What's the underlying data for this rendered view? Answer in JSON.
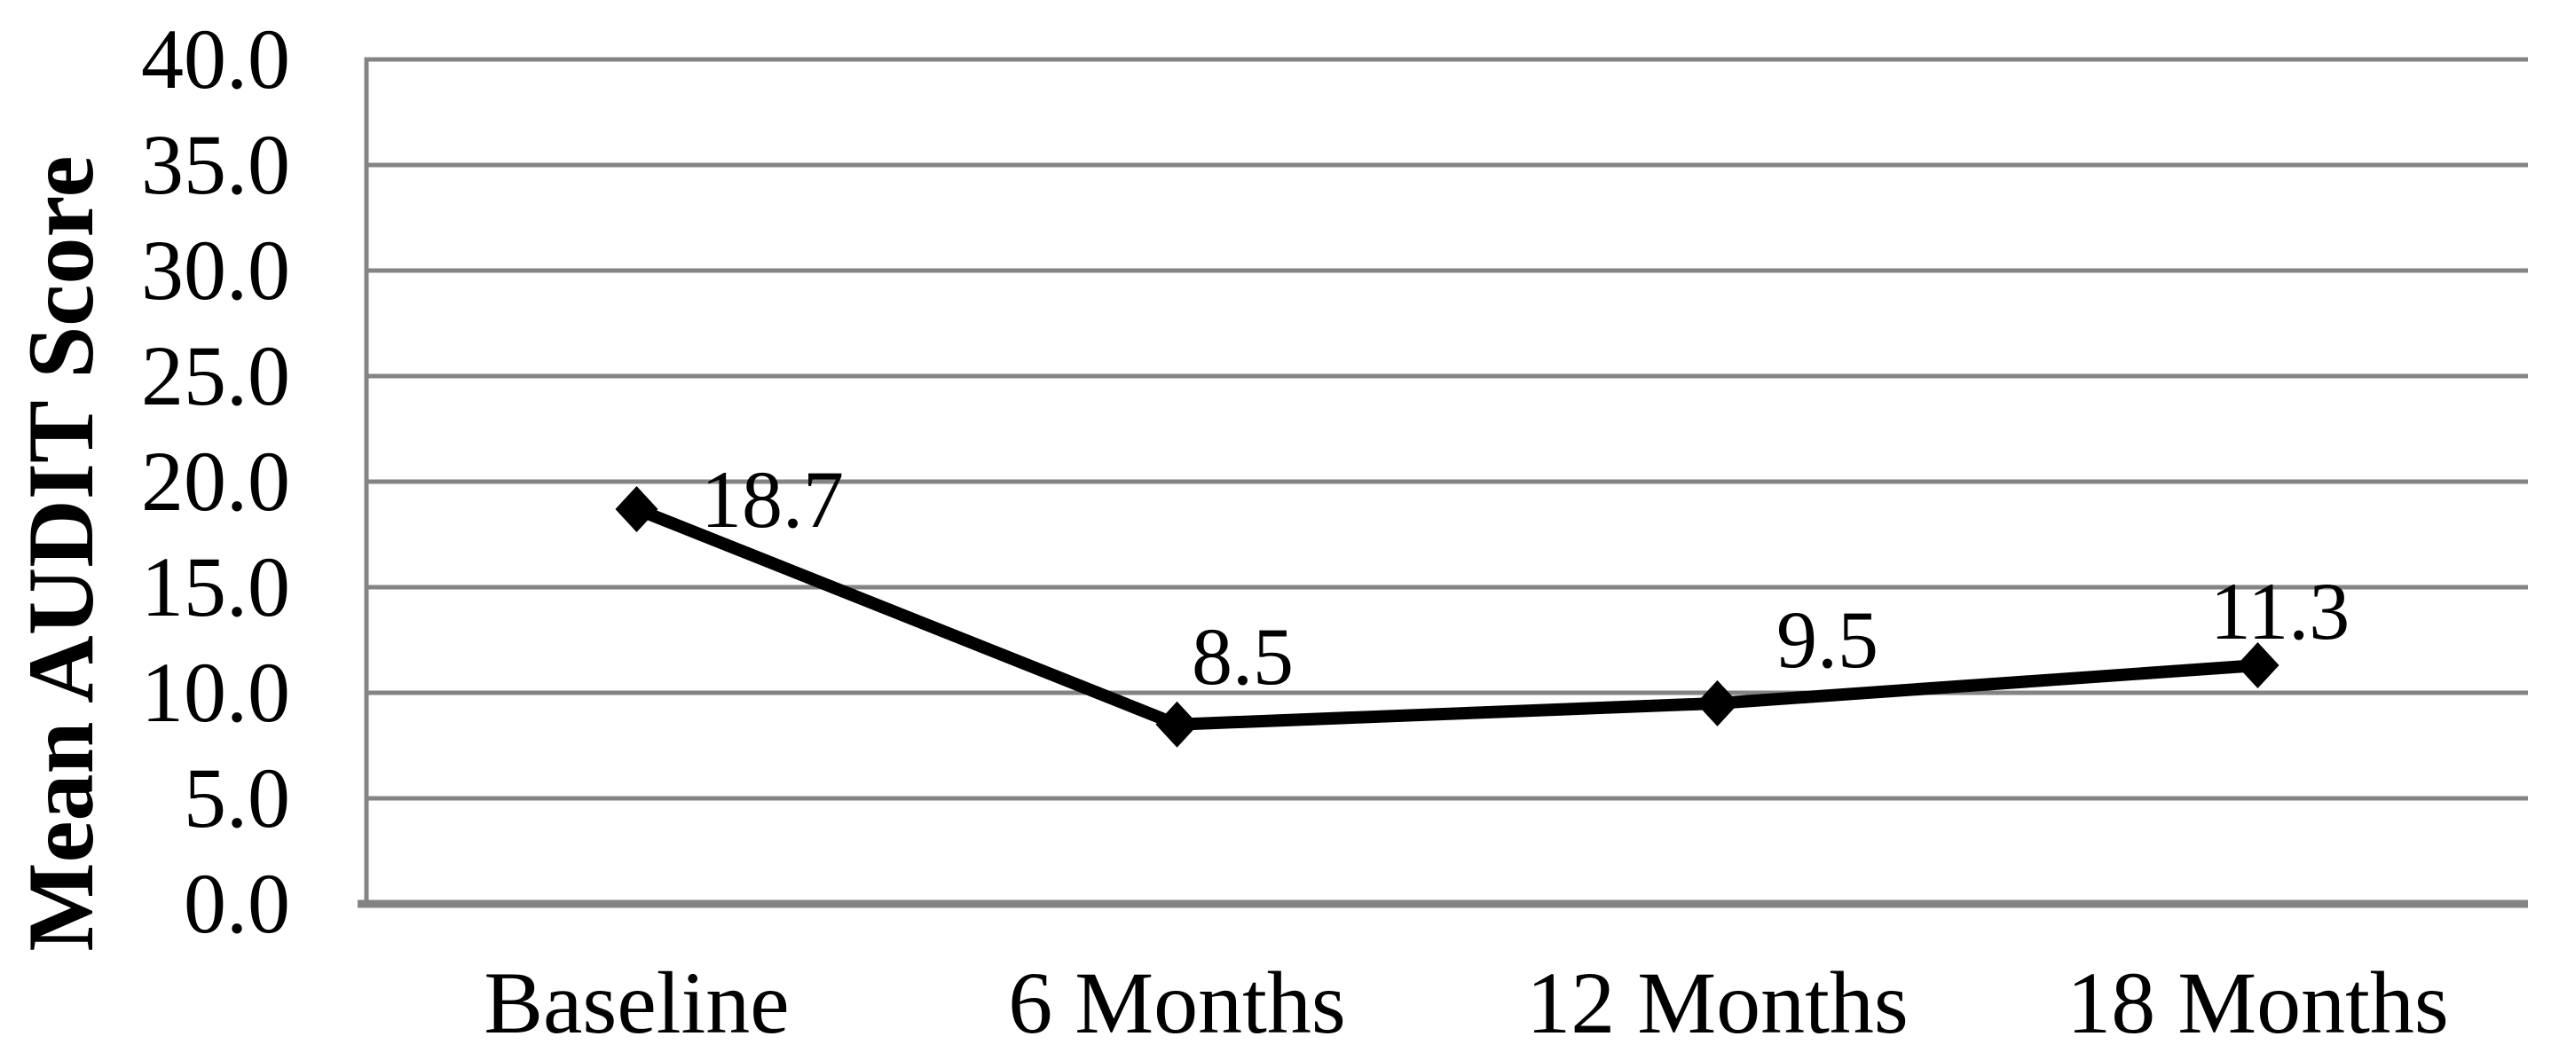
{
  "chart": {
    "y_axis_title": "Mean AUDIT Score",
    "y_tick_labels": [
      "40.0",
      "35.0",
      "30.0",
      "25.0",
      "20.0",
      "15.0",
      "10.0",
      "5.0",
      "0.0"
    ],
    "x_labels": [
      "Baseline",
      "6 Months",
      "12 Months",
      "18 Months"
    ],
    "point_labels": [
      "18.7",
      "8.5",
      "9.5",
      "11.3"
    ],
    "colors": {
      "gridline": "#848484",
      "axis": "#848484",
      "series": "#000000",
      "text": "#000000",
      "background": "#ffffff"
    }
  },
  "chart_data": {
    "type": "line",
    "title": "",
    "categories": [
      "Baseline",
      "6 Months",
      "12 Months",
      "18 Months"
    ],
    "values": [
      18.7,
      8.5,
      9.5,
      11.3
    ],
    "data_labels": [
      "18.7",
      "8.5",
      "9.5",
      "11.3"
    ],
    "xlabel": "",
    "ylabel": "Mean AUDIT Score",
    "ylim": [
      0,
      40
    ],
    "ytick_step": 5,
    "ytick_format": "one_decimal",
    "grid": "horizontal_gridlines_on",
    "legend": "none",
    "marker": "diamond",
    "series_color": "#000000",
    "gridline_color": "#848484"
  }
}
